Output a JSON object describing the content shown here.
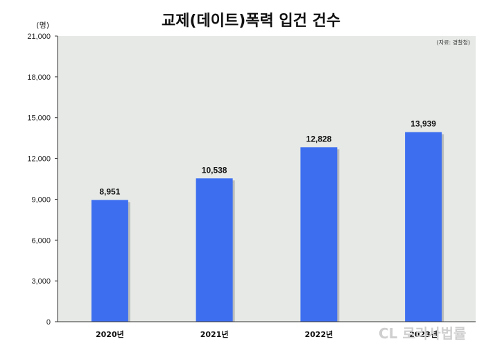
{
  "chart_data": {
    "type": "bar",
    "title": "교제(데이트)폭력 입건 건수",
    "unit_label": "(명)",
    "source": "(자료: 경찰청)",
    "categories": [
      "2020년",
      "2021년",
      "2022년",
      "2023년"
    ],
    "values": [
      8951,
      10538,
      12828,
      13939
    ],
    "value_labels": [
      "8,951",
      "10,538",
      "12,828",
      "13,939"
    ],
    "ylim": [
      0,
      21000
    ],
    "yticks": [
      0,
      3000,
      6000,
      9000,
      12000,
      15000,
      18000,
      21000
    ],
    "ytick_labels": [
      "0",
      "3,000",
      "6,000",
      "9,000",
      "12,000",
      "15,000",
      "18,000",
      "21,000"
    ],
    "grid": false,
    "bar_color": "#3d6ef0",
    "plot_background": "#e6e9e6"
  },
  "watermark": "CL 로리사법률"
}
